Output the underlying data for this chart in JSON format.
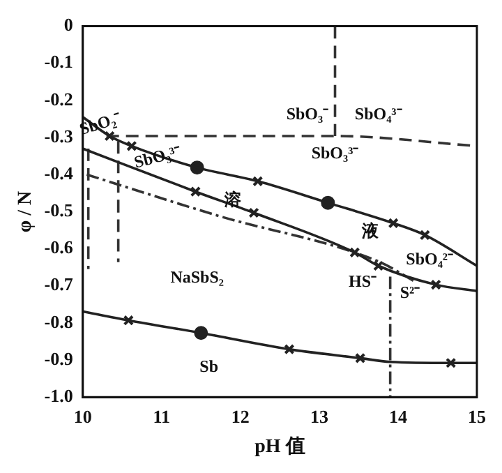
{
  "chart_data": {
    "type": "line",
    "xlabel": "pH 值",
    "ylabel": "φ / N",
    "xlim": [
      10,
      15
    ],
    "ylim": [
      -1,
      0
    ],
    "xticks": [
      10,
      11,
      12,
      13,
      14,
      15
    ],
    "yticks": [
      0,
      -0.1,
      -0.2,
      -0.3,
      -0.4,
      -0.5,
      -0.6,
      -0.7,
      -0.8,
      -0.9,
      {
        "value": -1,
        "label": "-1.0"
      }
    ],
    "grid": false,
    "legend": false,
    "series": [
      {
        "color": "#222222",
        "line_style": "solid",
        "x": [
          10,
          10.34,
          10.62,
          11.45,
          12.22,
          13.11,
          13.94,
          14.34,
          15
        ],
        "values": [
          -0.245,
          -0.296,
          -0.323,
          -0.381,
          -0.418,
          -0.476,
          -0.531,
          -0.563,
          -0.646
        ]
      },
      {
        "color": "#222222",
        "line_style": "solid",
        "x": [
          10,
          11.43,
          12.17,
          13.45,
          13.75,
          14.48,
          15
        ],
        "values": [
          -0.33,
          -0.446,
          -0.503,
          -0.61,
          -0.646,
          -0.697,
          -0.714
        ]
      },
      {
        "color": "#222222",
        "line_style": "solid",
        "x": [
          10,
          10.58,
          11.5,
          12.62,
          13.52,
          13.9,
          14.67,
          15
        ],
        "values": [
          -0.769,
          -0.793,
          -0.827,
          -0.871,
          -0.895,
          -0.905,
          -0.908,
          -0.908
        ]
      },
      {
        "color": "#333333",
        "line_style": "dashdot",
        "x": [
          10.05,
          11.7,
          13.77,
          14.2
        ],
        "values": [
          -0.4,
          -0.51,
          -0.636,
          -0.687
        ]
      },
      {
        "color": "#333333",
        "line_style": "dashdot",
        "x": [
          13.9,
          13.9
        ],
        "values": [
          -0.675,
          -1
        ]
      },
      {
        "color": "#333333",
        "line_style": "dashed",
        "x": [
          10.3,
          13.2,
          15
        ],
        "values": [
          -0.296,
          -0.296,
          -0.323
        ]
      },
      {
        "color": "#333333",
        "line_style": "dashed",
        "x": [
          13.2,
          13.2
        ],
        "values": [
          0,
          -0.296
        ]
      },
      {
        "color": "#333333",
        "line_style": "dashed",
        "x": [
          10.07,
          10.07
        ],
        "values": [
          -0.33,
          -0.655
        ]
      },
      {
        "color": "#333333",
        "line_style": "dashed",
        "x": [
          10.45,
          10.45
        ],
        "values": [
          -0.31,
          -0.636
        ]
      },
      {
        "type": "scatter",
        "color": "#222222",
        "marker": "cross",
        "x": [
          10.34,
          10.62,
          12.22,
          13.94,
          14.34,
          11.43,
          12.17,
          13.45,
          13.75,
          14.48,
          10.58,
          12.62,
          13.52,
          14.67
        ],
        "values": [
          -0.296,
          -0.323,
          -0.418,
          -0.531,
          -0.563,
          -0.446,
          -0.503,
          -0.61,
          -0.646,
          -0.697,
          -0.793,
          -0.871,
          -0.895,
          -0.908
        ]
      },
      {
        "type": "scatter",
        "color": "#222222",
        "marker": "circle",
        "x": [
          11.45,
          13.11,
          11.5
        ],
        "values": [
          -0.381,
          -0.476,
          -0.827
        ]
      }
    ],
    "annotations": [
      "SbO₃⁻",
      "SbO₄³⁻",
      "SbO₃³⁻",
      "SbO₂⁻",
      "SbO₃³⁻",
      "溶",
      "液",
      "SbO₄²⁻",
      "HS⁻",
      "S²⁻",
      "NaSbS₂",
      "Sb"
    ]
  }
}
